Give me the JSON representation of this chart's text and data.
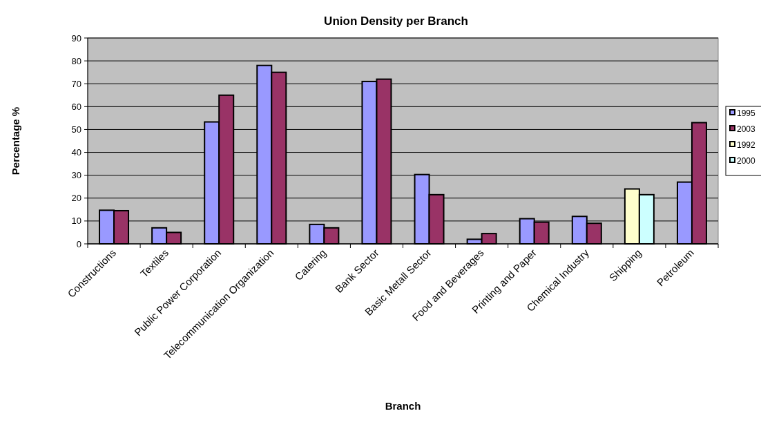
{
  "chart_data": {
    "type": "bar",
    "title": "Union Density per Branch",
    "xlabel": "Branch",
    "ylabel": "Percentage %",
    "categories": [
      "Constructions",
      "Textiles",
      "Public Power Corporation",
      "Telecommunication Organization",
      "Catering",
      "Bank Sector",
      "Basic Metall Sector",
      "Food and Beverages",
      "Printing and Paper",
      "Chemical Industry",
      "Shipping",
      "Petroleum"
    ],
    "series": [
      {
        "name": "1995",
        "color": "#9999ff",
        "values": [
          14.7,
          7,
          53.3,
          78,
          8.5,
          71,
          30.3,
          2,
          11,
          12,
          null,
          27
        ]
      },
      {
        "name": "2003",
        "color": "#993366",
        "values": [
          14.5,
          5,
          65,
          75,
          7,
          72,
          21.5,
          4.5,
          9.5,
          9,
          null,
          53
        ]
      },
      {
        "name": "1992",
        "color": "#ffffcc",
        "values": [
          null,
          null,
          null,
          null,
          null,
          null,
          null,
          null,
          null,
          null,
          24,
          null
        ]
      },
      {
        "name": "2000",
        "color": "#ccffff",
        "values": [
          null,
          null,
          null,
          null,
          null,
          null,
          null,
          null,
          null,
          null,
          21.5,
          null
        ]
      }
    ],
    "ylim": [
      0,
      90
    ],
    "yticks": [
      0,
      10,
      20,
      30,
      40,
      50,
      60,
      70,
      80,
      90
    ],
    "grid": "y",
    "legend": "right"
  }
}
